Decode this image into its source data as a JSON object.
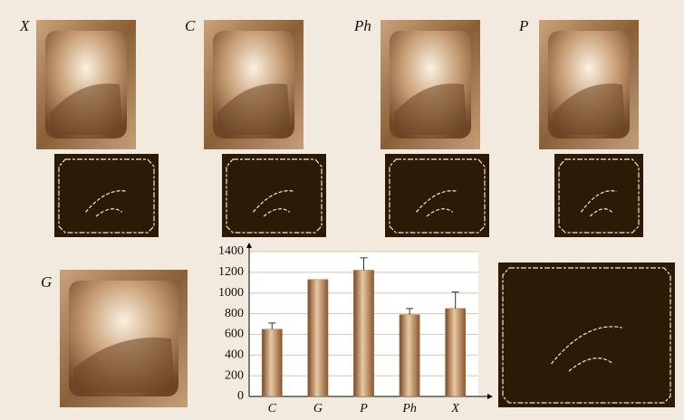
{
  "panels": [
    {
      "label": "X"
    },
    {
      "label": "C"
    },
    {
      "label": "Ph"
    },
    {
      "label": "P"
    },
    {
      "label": "G"
    }
  ],
  "chart_data": {
    "type": "bar",
    "categories": [
      "C",
      "G",
      "P",
      "Ph",
      "X"
    ],
    "values": [
      650,
      1130,
      1220,
      790,
      850
    ],
    "errors": [
      60,
      null,
      120,
      60,
      160
    ],
    "color": "#a86a3c",
    "ylim": [
      0,
      1400
    ],
    "yticks": [
      0,
      200,
      400,
      600,
      800,
      1000,
      1200,
      1400
    ],
    "grid": true
  }
}
